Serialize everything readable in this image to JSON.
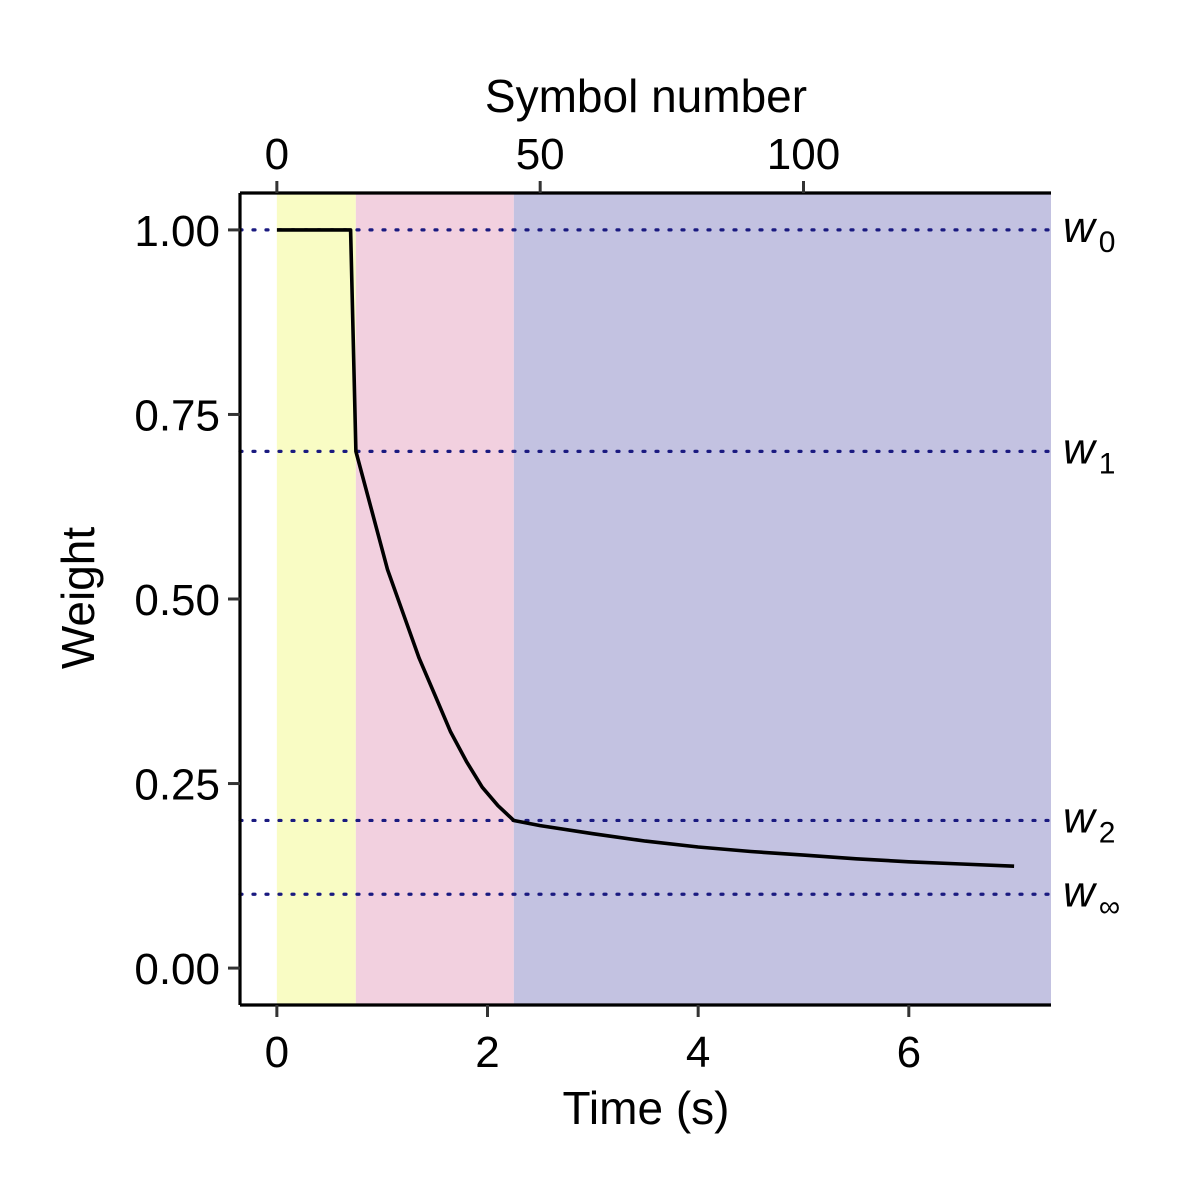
{
  "chart_data": {
    "type": "line",
    "xlabel": "Time (s)",
    "x2label": "Symbol number",
    "ylabel": "Weight",
    "xlim": [
      -0.35,
      7.35
    ],
    "ylim": [
      -0.05,
      1.05
    ],
    "x_ticks": [
      0,
      2,
      4,
      6
    ],
    "x_tick_labels": [
      "0",
      "2",
      "4",
      "6"
    ],
    "x2_ticks": [
      0,
      50,
      100
    ],
    "x2_tick_labels": [
      "0",
      "50",
      "100"
    ],
    "x2_per_x": 20,
    "y_ticks": [
      0.0,
      0.25,
      0.5,
      0.75,
      1.0
    ],
    "y_tick_labels": [
      "0.00",
      "0.25",
      "0.50",
      "0.75",
      "1.00"
    ],
    "grid": false,
    "shaded_regions": [
      {
        "x_start": 0.0,
        "x_end": 0.75,
        "color": "#f9fcc4"
      },
      {
        "x_start": 0.75,
        "x_end": 2.25,
        "color": "#f2d0df"
      },
      {
        "x_start": 2.25,
        "x_end": 7.35,
        "color": "#c3c2e1"
      }
    ],
    "reference_lines": [
      {
        "symbol": "w",
        "subscript": "0",
        "y": 1.0
      },
      {
        "symbol": "w",
        "subscript": "1",
        "y": 0.7
      },
      {
        "symbol": "w",
        "subscript": "2",
        "y": 0.2
      },
      {
        "symbol": "w",
        "subscript": "∞",
        "y": 0.1
      }
    ],
    "reference_line_color": "#1a1a80",
    "series_color": "#000000",
    "series": [
      {
        "x": [
          0,
          0.7,
          0.75,
          0.9,
          1.05,
          1.2,
          1.35,
          1.5,
          1.65,
          1.8,
          1.95,
          2.1,
          2.25,
          2.5,
          3.0,
          3.5,
          4.0,
          4.5,
          5.0,
          5.5,
          6.0,
          6.5,
          7.0
        ],
        "values": [
          1.0,
          1.0,
          0.7,
          0.62,
          0.54,
          0.48,
          0.42,
          0.37,
          0.32,
          0.28,
          0.245,
          0.22,
          0.2,
          0.193,
          0.182,
          0.172,
          0.164,
          0.158,
          0.153,
          0.148,
          0.144,
          0.141,
          0.138
        ]
      }
    ]
  }
}
